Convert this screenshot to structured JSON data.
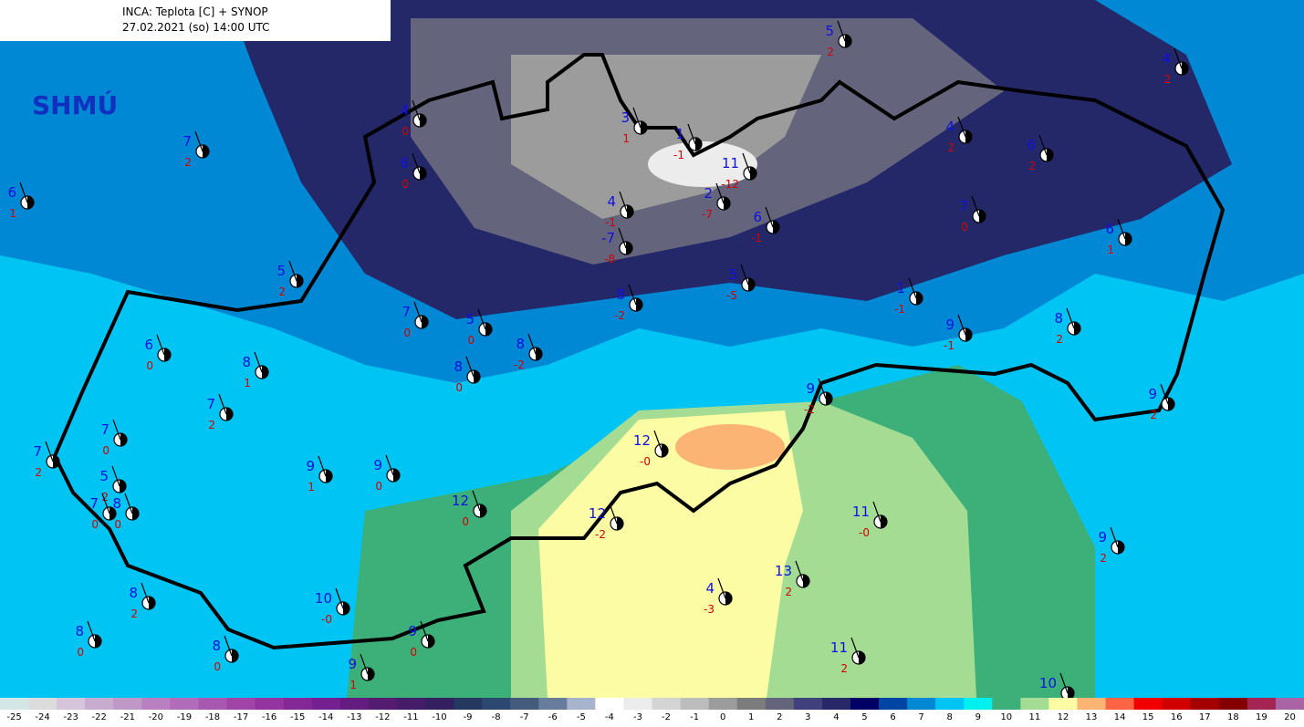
{
  "header": {
    "title": "INCA: Teplota [C] + SYNOP",
    "subtitle": "27.02.2021 (so) 14:00 UTC",
    "logo": "SHMÚ"
  },
  "stations": [
    {
      "temp": 4,
      "dew": 0
    },
    {
      "temp": 7,
      "dew": 2
    },
    {
      "temp": 6,
      "dew": 0
    },
    {
      "temp": 6,
      "dew": 1
    },
    {
      "temp": 3,
      "dew": 1
    },
    {
      "temp": 1,
      "dew": -1
    },
    {
      "temp": 11,
      "dew": -12
    },
    {
      "temp": 2,
      "dew": -7
    },
    {
      "temp": 4,
      "dew": -1
    },
    {
      "temp": -7,
      "dew": -8
    },
    {
      "temp": 6,
      "dew": -1
    },
    {
      "temp": 5,
      "dew": 2
    },
    {
      "temp": 4,
      "dew": 2
    },
    {
      "temp": 4,
      "dew": 2
    },
    {
      "temp": 6,
      "dew": 2
    },
    {
      "temp": 7,
      "dew": 0
    },
    {
      "temp": 6,
      "dew": 1
    },
    {
      "temp": 5,
      "dew": -5
    },
    {
      "temp": 8,
      "dew": -2
    },
    {
      "temp": 1,
      "dew": -1
    },
    {
      "temp": 9,
      "dew": -1
    },
    {
      "temp": 8,
      "dew": 2
    },
    {
      "temp": 9,
      "dew": 2
    },
    {
      "temp": 5,
      "dew": 2
    },
    {
      "temp": 7,
      "dew": 0
    },
    {
      "temp": 5,
      "dew": 0
    },
    {
      "temp": 8,
      "dew": -2
    },
    {
      "temp": 8,
      "dew": 0
    },
    {
      "temp": 6,
      "dew": 0
    },
    {
      "temp": 8,
      "dew": 1
    },
    {
      "temp": 7,
      "dew": 2
    },
    {
      "temp": 7,
      "dew": 0
    },
    {
      "temp": 7,
      "dew": 2
    },
    {
      "temp": 5,
      "dew": 2
    },
    {
      "temp": 7,
      "dew": 0
    },
    {
      "temp": 8,
      "dew": 0
    },
    {
      "temp": 9,
      "dew": 1
    },
    {
      "temp": 9,
      "dew": 0
    },
    {
      "temp": 12,
      "dew": 0
    },
    {
      "temp": 12,
      "dew": "-0"
    },
    {
      "temp": 9,
      "dew": -2
    },
    {
      "temp": 12,
      "dew": -2
    },
    {
      "temp": 11,
      "dew": "-0"
    },
    {
      "temp": 9,
      "dew": 2
    },
    {
      "temp": 8,
      "dew": 2
    },
    {
      "temp": 8,
      "dew": 0
    },
    {
      "temp": 8,
      "dew": 0
    },
    {
      "temp": 10,
      "dew": "-0"
    },
    {
      "temp": 9,
      "dew": 0
    },
    {
      "temp": 9,
      "dew": 1
    },
    {
      "temp": 4,
      "dew": -3
    },
    {
      "temp": 13,
      "dew": 2
    },
    {
      "temp": 11,
      "dew": 2
    },
    {
      "temp": 10
    }
  ],
  "colorbar": [
    {
      "value": -25,
      "color": "#d4e6e6"
    },
    {
      "value": -24,
      "color": "#dcdcdc"
    },
    {
      "value": -23,
      "color": "#d4c4dc"
    },
    {
      "value": -22,
      "color": "#c8acd0"
    },
    {
      "value": -21,
      "color": "#c098c8"
    },
    {
      "value": -20,
      "color": "#b880c0"
    },
    {
      "value": -19,
      "color": "#b06cb8"
    },
    {
      "value": -18,
      "color": "#a858b0"
    },
    {
      "value": -17,
      "color": "#a044a8"
    },
    {
      "value": -16,
      "color": "#9434a0"
    },
    {
      "value": -15,
      "color": "#842898"
    },
    {
      "value": -14,
      "color": "#742090"
    },
    {
      "value": -13,
      "color": "#641c80"
    },
    {
      "value": -12,
      "color": "#541c70"
    },
    {
      "value": -11,
      "color": "#441c68"
    },
    {
      "value": -10,
      "color": "#342060"
    },
    {
      "value": -9,
      "color": "#243860"
    },
    {
      "value": -8,
      "color": "#2c4870"
    },
    {
      "value": -7,
      "color": "#445c7c"
    },
    {
      "value": -6,
      "color": "#687c9c"
    },
    {
      "value": -5,
      "color": "#a8b4cc"
    },
    {
      "value": -4,
      "color": "#ffffff"
    },
    {
      "value": -3,
      "color": "#ececec"
    },
    {
      "value": -2,
      "color": "#d4d4d4"
    },
    {
      "value": -1,
      "color": "#bcbcbc"
    },
    {
      "value": 0,
      "color": "#9c9c9c"
    },
    {
      "value": 1,
      "color": "#7c7c7c"
    },
    {
      "value": 2,
      "color": "#64647c"
    },
    {
      "value": 3,
      "color": "#40407c"
    },
    {
      "value": 4,
      "color": "#282868"
    },
    {
      "value": 5,
      "color": "#000064"
    },
    {
      "value": 6,
      "color": "#0044a4"
    },
    {
      "value": 7,
      "color": "#0088d4"
    },
    {
      "value": 8,
      "color": "#00c4f4"
    },
    {
      "value": 9,
      "color": "#00f0f0"
    },
    {
      "value": 10,
      "color": "#3cb078"
    },
    {
      "value": 11,
      "color": "#a4dc94"
    },
    {
      "value": 12,
      "color": "#fcfca4"
    },
    {
      "value": 13,
      "color": "#fcb474"
    },
    {
      "value": 14,
      "color": "#fc6444"
    },
    {
      "value": 15,
      "color": "#f00000"
    },
    {
      "value": 16,
      "color": "#d00000"
    },
    {
      "value": 17,
      "color": "#a40000"
    },
    {
      "value": 18,
      "color": "#840000"
    },
    {
      "value": 19,
      "color": "#a42454"
    },
    {
      "value": 20,
      "color": "#a864a4"
    }
  ]
}
